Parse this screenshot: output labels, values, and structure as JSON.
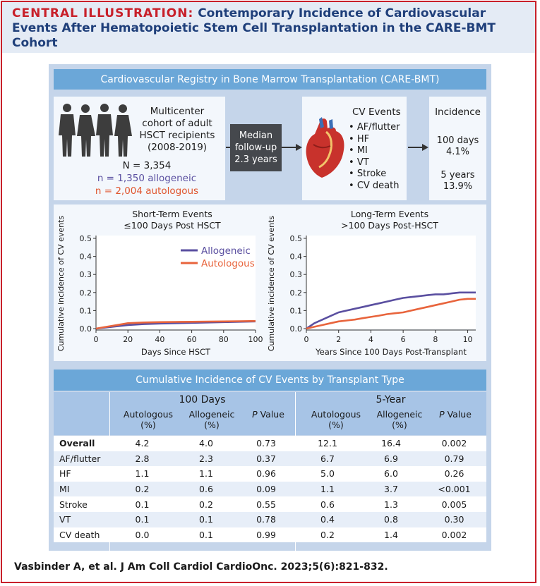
{
  "header": {
    "lead": "CENTRAL ILLUSTRATION:",
    "title": "Contemporary Incidence of Cardiovascular Events After Hematopoietic Stem Cell Transplantation in the CARE-BMT Cohort"
  },
  "registry": {
    "banner": "Cardiovascular Registry in Bone Marrow Transplantation (CARE-BMT)",
    "cohort_lines": [
      "Multicenter",
      "cohort of adult",
      "HSCT recipients",
      "(2008-2019)"
    ],
    "n_total": "N = 3,354",
    "n_allo": "n = 1,350 allogeneic",
    "n_auto": "n = 2,004 autologous",
    "followup_lines": [
      "Median",
      "follow-up",
      "2.3 years"
    ],
    "events_title": "CV Events",
    "events": [
      "AF/flutter",
      "HF",
      "MI",
      "VT",
      "Stroke",
      "CV death"
    ],
    "incidence_title": "Incidence",
    "inc_100_label": "100 days",
    "inc_100_value": "4.1%",
    "inc_5y_label": "5 years",
    "inc_5y_value": "13.9%"
  },
  "colors": {
    "allogeneic": "#5a4fa0",
    "autologous": "#e8643c",
    "accent": "#c8202a",
    "banner": "#6ba7d8"
  },
  "chart_data": [
    {
      "type": "line",
      "title": "Short-Term Events",
      "subtitle": "≤100 Days Post HSCT",
      "xlabel": "Days Since HSCT",
      "ylabel": "Cumulative incidence of CV events",
      "xlim": [
        0,
        100
      ],
      "ylim": [
        0,
        0.5
      ],
      "xticks": [
        "0",
        "20",
        "40",
        "60",
        "80",
        "100"
      ],
      "yticks": [
        "0.0",
        "0.1",
        "0.2",
        "0.3",
        "0.4",
        "0.5"
      ],
      "legend": [
        "Allogeneic",
        "Autologous"
      ],
      "series": [
        {
          "name": "Allogeneic",
          "x": [
            0,
            5,
            10,
            20,
            30,
            40,
            50,
            60,
            70,
            80,
            90,
            100
          ],
          "values": [
            0.0,
            0.005,
            0.01,
            0.02,
            0.025,
            0.028,
            0.03,
            0.032,
            0.034,
            0.036,
            0.038,
            0.04
          ]
        },
        {
          "name": "Autologous",
          "x": [
            0,
            5,
            10,
            20,
            30,
            40,
            50,
            60,
            70,
            80,
            90,
            100
          ],
          "values": [
            0.0,
            0.008,
            0.015,
            0.03,
            0.034,
            0.036,
            0.037,
            0.038,
            0.039,
            0.04,
            0.041,
            0.042
          ]
        }
      ]
    },
    {
      "type": "line",
      "title": "Long-Term Events",
      "subtitle": ">100 Days Post-HSCT",
      "xlabel": "Years Since 100 Days Post-Transplant",
      "ylabel": "Cumulative incidence of CV events",
      "xlim": [
        0,
        10.5
      ],
      "ylim": [
        0,
        0.5
      ],
      "xticks": [
        "0",
        "2",
        "4",
        "6",
        "8",
        "10"
      ],
      "yticks": [
        "0.0",
        "0.1",
        "0.2",
        "0.3",
        "0.4",
        "0.5"
      ],
      "series": [
        {
          "name": "Allogeneic",
          "x": [
            0,
            0.5,
            1,
            1.5,
            2,
            2.5,
            3,
            3.5,
            4,
            4.5,
            5,
            5.5,
            6,
            6.5,
            7,
            7.5,
            8,
            8.5,
            9,
            9.5,
            10,
            10.5
          ],
          "values": [
            0.0,
            0.03,
            0.05,
            0.07,
            0.09,
            0.1,
            0.11,
            0.12,
            0.13,
            0.14,
            0.15,
            0.16,
            0.17,
            0.175,
            0.18,
            0.185,
            0.19,
            0.19,
            0.195,
            0.2,
            0.2,
            0.2
          ]
        },
        {
          "name": "Autologous",
          "x": [
            0,
            0.5,
            1,
            1.5,
            2,
            2.5,
            3,
            3.5,
            4,
            4.5,
            5,
            5.5,
            6,
            6.5,
            7,
            7.5,
            8,
            8.5,
            9,
            9.5,
            10,
            10.5
          ],
          "values": [
            0.0,
            0.01,
            0.02,
            0.03,
            0.04,
            0.045,
            0.05,
            0.058,
            0.065,
            0.072,
            0.08,
            0.085,
            0.09,
            0.1,
            0.11,
            0.12,
            0.13,
            0.14,
            0.15,
            0.16,
            0.165,
            0.165
          ]
        }
      ]
    }
  ],
  "table": {
    "banner": "Cumulative Incidence of CV Events by Transplant Type",
    "group_100": "100 Days",
    "group_5y": "5-Year",
    "col_auto": [
      "Autologous",
      "(%)"
    ],
    "col_allo": [
      "Allogeneic",
      "(%)"
    ],
    "col_p_italic": "P",
    "col_p_rest": " Value",
    "rows": [
      {
        "label": "Overall",
        "a100": "4.2",
        "b100": "4.0",
        "p100": "0.73",
        "a5": "12.1",
        "b5": "16.4",
        "p5": "0.002"
      },
      {
        "label": "AF/flutter",
        "a100": "2.8",
        "b100": "2.3",
        "p100": "0.37",
        "a5": "6.7",
        "b5": "6.9",
        "p5": "0.79"
      },
      {
        "label": "HF",
        "a100": "1.1",
        "b100": "1.1",
        "p100": "0.96",
        "a5": "5.0",
        "b5": "6.0",
        "p5": "0.26"
      },
      {
        "label": "MI",
        "a100": "0.2",
        "b100": "0.6",
        "p100": "0.09",
        "a5": "1.1",
        "b5": "3.7",
        "p5": "<0.001"
      },
      {
        "label": "Stroke",
        "a100": "0.1",
        "b100": "0.2",
        "p100": "0.55",
        "a5": "0.6",
        "b5": "1.3",
        "p5": "0.005"
      },
      {
        "label": "VT",
        "a100": "0.1",
        "b100": "0.1",
        "p100": "0.78",
        "a5": "0.4",
        "b5": "0.8",
        "p5": "0.30"
      },
      {
        "label": "CV death",
        "a100": "0.0",
        "b100": "0.1",
        "p100": "0.99",
        "a5": "0.2",
        "b5": "1.4",
        "p5": "0.002"
      }
    ]
  },
  "footer": "Vasbinder A, et al. J Am Coll Cardiol CardioOnc. 2023;5(6):821-832."
}
